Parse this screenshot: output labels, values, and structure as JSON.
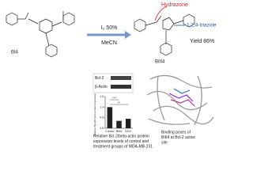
{
  "reaction": {
    "reactant": "BI4",
    "reagent": "I₂ 50%",
    "solvent": "MeCN",
    "product": "BIII4",
    "hydrazone": "Hydrazone",
    "triazole": "1,2,4-triazole",
    "yield": "Yield 86%"
  },
  "blot": {
    "bands": [
      "Bcl-2",
      "β-Actin"
    ]
  },
  "chart": {
    "type": "bar",
    "ylabel": "Relative Bcl-2/β-Actin protein expression",
    "categories": [
      "Control",
      "BIII4",
      "DOX"
    ],
    "values": [
      1.0,
      0.35,
      0.45
    ],
    "color": "#222222",
    "ylim": [
      0,
      1.5
    ],
    "yticks": [
      {
        "value": 0,
        "label": "0.0"
      },
      {
        "value": 0.5,
        "label": "0.5"
      },
      {
        "value": 1,
        "label": "1.0"
      },
      {
        "value": 1.5,
        "label": "1.5"
      }
    ],
    "annotations": [
      "***",
      "**"
    ]
  },
  "captions": {
    "expression": [
      "Relative Bcl-2/beta-actin protein",
      "expression levels of control and",
      "treatment groups of MDA-MB-231"
    ],
    "binding": [
      "Binding poses of",
      "BIII4 at Bcl-2 active",
      "site"
    ]
  }
}
